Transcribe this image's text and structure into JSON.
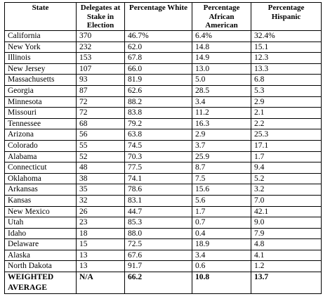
{
  "table": {
    "headers": [
      "State",
      "Delegates at Stake in Election",
      "Percentage White",
      "Percentage African American",
      "Percentage Hispanic"
    ],
    "rows": [
      [
        "California",
        "370",
        "46.7%",
        "6.4%",
        "32.4%"
      ],
      [
        "New York",
        "232",
        "62.0",
        "14.8",
        "15.1"
      ],
      [
        "Illinois",
        "153",
        "67.8",
        "14.9",
        "12.3"
      ],
      [
        "New Jersey",
        "107",
        "66.0",
        "13.0",
        "13.3"
      ],
      [
        "Massachusetts",
        "93",
        "81.9",
        "5.0",
        "6.8"
      ],
      [
        "Georgia",
        "87",
        "62.6",
        "28.5",
        "5.3"
      ],
      [
        "Minnesota",
        "72",
        "88.2",
        "3.4",
        "2.9"
      ],
      [
        "Missouri",
        "72",
        "83.8",
        "11.2",
        "2.1"
      ],
      [
        "Tennessee",
        "68",
        "79.2",
        "16.3",
        "2.2"
      ],
      [
        "Arizona",
        "56",
        "63.8",
        "2.9",
        "25.3"
      ],
      [
        "Colorado",
        "55",
        "74.5",
        "3.7",
        "17.1"
      ],
      [
        "Alabama",
        "52",
        "70.3",
        "25.9",
        "1.7"
      ],
      [
        "Connecticut",
        "48",
        "77.5",
        "8.7",
        "9.4"
      ],
      [
        "Oklahoma",
        "38",
        "74.1",
        "7.5",
        "5.2"
      ],
      [
        "Arkansas",
        "35",
        "78.6",
        "15.6",
        "3.2"
      ],
      [
        "Kansas",
        "32",
        "83.1",
        "5.6",
        "7.0"
      ],
      [
        "New Mexico",
        "26",
        "44.7",
        "1.7",
        "42.1"
      ],
      [
        "Utah",
        "23",
        "85.3",
        "0.7",
        "9.0"
      ],
      [
        "Idaho",
        "18",
        "88.0",
        "0.4",
        "7.9"
      ],
      [
        "Delaware",
        "15",
        "72.5",
        "18.9",
        "4.8"
      ],
      [
        "Alaska",
        "13",
        "67.6",
        "3.4",
        "4.1"
      ],
      [
        "North Dakota",
        "13",
        "91.7",
        "0.6",
        "1.2"
      ]
    ],
    "total": [
      "WEIGHTED AVERAGE",
      "N/A",
      "66.2",
      "10.8",
      "13.7"
    ]
  }
}
